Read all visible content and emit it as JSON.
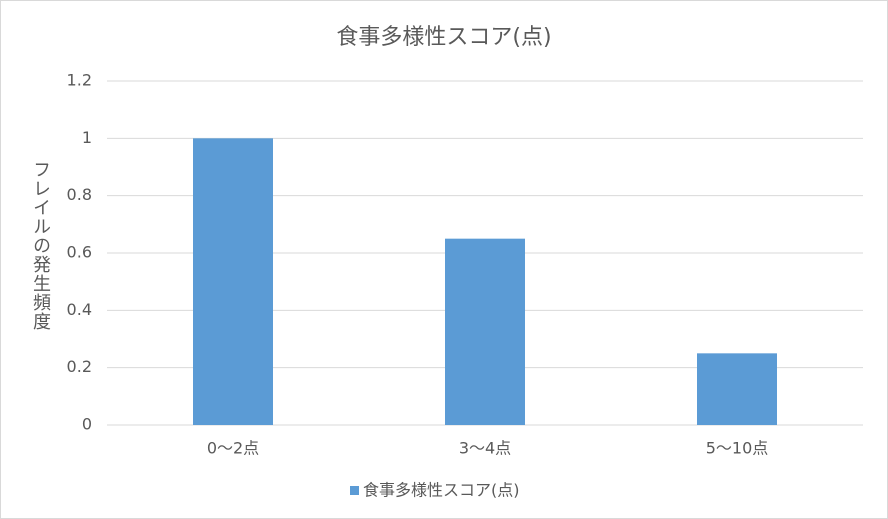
{
  "chart_data": {
    "type": "bar",
    "title": "食事多様性スコア(点)",
    "y_label": "フレイルの発生頻度",
    "categories": [
      "0～2点",
      "3～4点",
      "5～10点"
    ],
    "series": [
      {
        "name": "食事多様性スコア(点)",
        "color": "#5b9bd5",
        "values": [
          1,
          0.65,
          0.25
        ]
      }
    ],
    "ylim": [
      0,
      1.2
    ],
    "yticks": [
      0,
      0.2,
      0.4,
      0.6,
      0.8,
      1,
      1.2
    ],
    "grid": true,
    "legend": "bottom"
  }
}
